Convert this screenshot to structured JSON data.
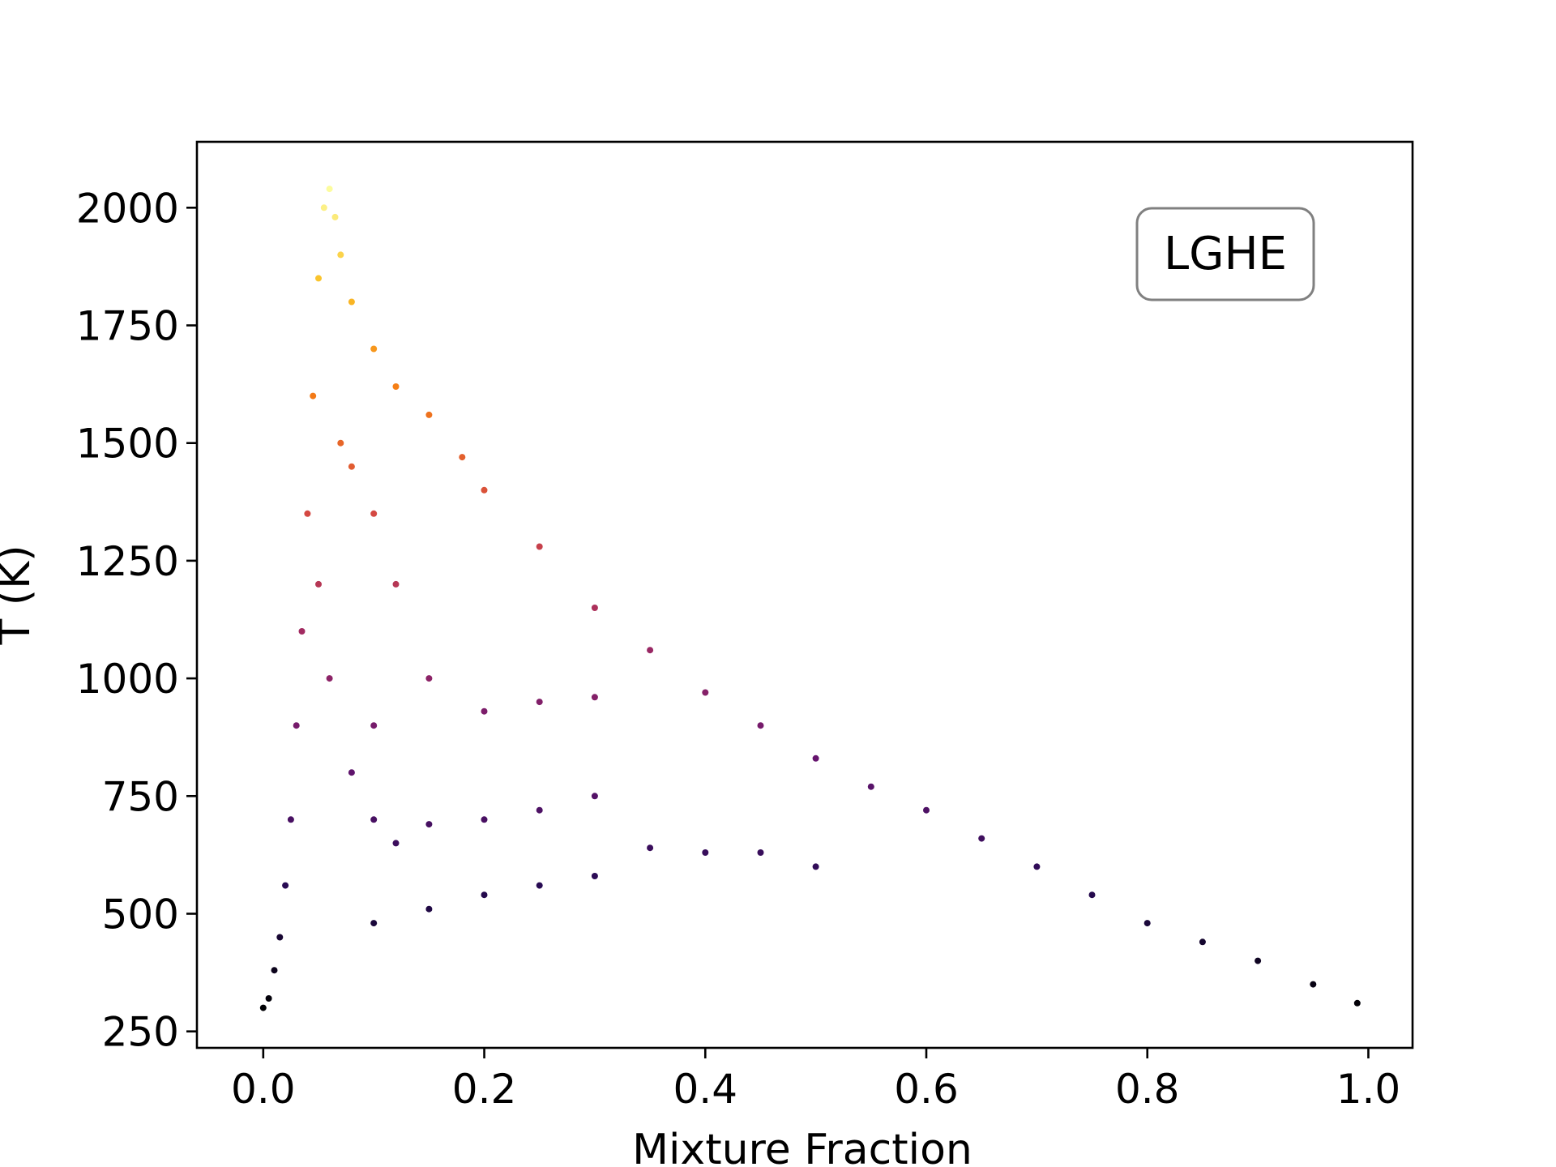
{
  "chart_data": {
    "type": "scatter",
    "title": "",
    "xlabel": "Mixture Fraction",
    "ylabel": "T (K)",
    "xlim": [
      -0.06,
      1.04
    ],
    "ylim": [
      215,
      2140
    ],
    "xticks": [
      0.0,
      0.2,
      0.4,
      0.6,
      0.8,
      1.0
    ],
    "yticks": [
      250,
      500,
      750,
      1000,
      1250,
      1500,
      1750,
      2000
    ],
    "xtick_labels": [
      "0.0",
      "0.2",
      "0.4",
      "0.6",
      "0.8",
      "1.0"
    ],
    "ytick_labels": [
      "250",
      "500",
      "750",
      "1000",
      "1250",
      "1500",
      "1750",
      "2000"
    ],
    "annotation": "LGHE",
    "annotation_position": "top-right",
    "colormap": "inferno",
    "color_by": "T (K)",
    "grid": false,
    "series": [
      {
        "points": [
          [
            0.0,
            300
          ],
          [
            0.005,
            320
          ],
          [
            0.01,
            380
          ],
          [
            0.015,
            450
          ],
          [
            0.02,
            560
          ],
          [
            0.025,
            700
          ],
          [
            0.03,
            900
          ],
          [
            0.035,
            1100
          ],
          [
            0.04,
            1350
          ],
          [
            0.045,
            1600
          ],
          [
            0.05,
            1850
          ],
          [
            0.055,
            2000
          ],
          [
            0.06,
            2040
          ],
          [
            0.065,
            1980
          ],
          [
            0.07,
            1900
          ],
          [
            0.08,
            1800
          ],
          [
            0.1,
            1700
          ],
          [
            0.12,
            1620
          ],
          [
            0.15,
            1560
          ],
          [
            0.18,
            1470
          ],
          [
            0.2,
            1400
          ],
          [
            0.25,
            1280
          ],
          [
            0.3,
            1150
          ],
          [
            0.35,
            1060
          ],
          [
            0.4,
            970
          ],
          [
            0.45,
            900
          ],
          [
            0.5,
            830
          ],
          [
            0.55,
            770
          ],
          [
            0.6,
            720
          ],
          [
            0.65,
            660
          ],
          [
            0.7,
            600
          ],
          [
            0.75,
            540
          ],
          [
            0.8,
            480
          ],
          [
            0.85,
            440
          ],
          [
            0.9,
            400
          ],
          [
            0.95,
            350
          ],
          [
            0.99,
            310
          ],
          [
            0.1,
            480
          ],
          [
            0.15,
            510
          ],
          [
            0.2,
            540
          ],
          [
            0.25,
            560
          ],
          [
            0.3,
            580
          ],
          [
            0.35,
            640
          ],
          [
            0.4,
            630
          ],
          [
            0.45,
            630
          ],
          [
            0.5,
            600
          ],
          [
            0.15,
            690
          ],
          [
            0.2,
            700
          ],
          [
            0.25,
            720
          ],
          [
            0.3,
            750
          ],
          [
            0.1,
            900
          ],
          [
            0.15,
            1000
          ],
          [
            0.2,
            930
          ],
          [
            0.25,
            950
          ],
          [
            0.3,
            960
          ],
          [
            0.07,
            1500
          ],
          [
            0.08,
            1450
          ],
          [
            0.1,
            1350
          ],
          [
            0.12,
            1200
          ],
          [
            0.05,
            1200
          ],
          [
            0.06,
            1000
          ],
          [
            0.08,
            800
          ],
          [
            0.1,
            700
          ],
          [
            0.12,
            650
          ]
        ]
      }
    ]
  }
}
